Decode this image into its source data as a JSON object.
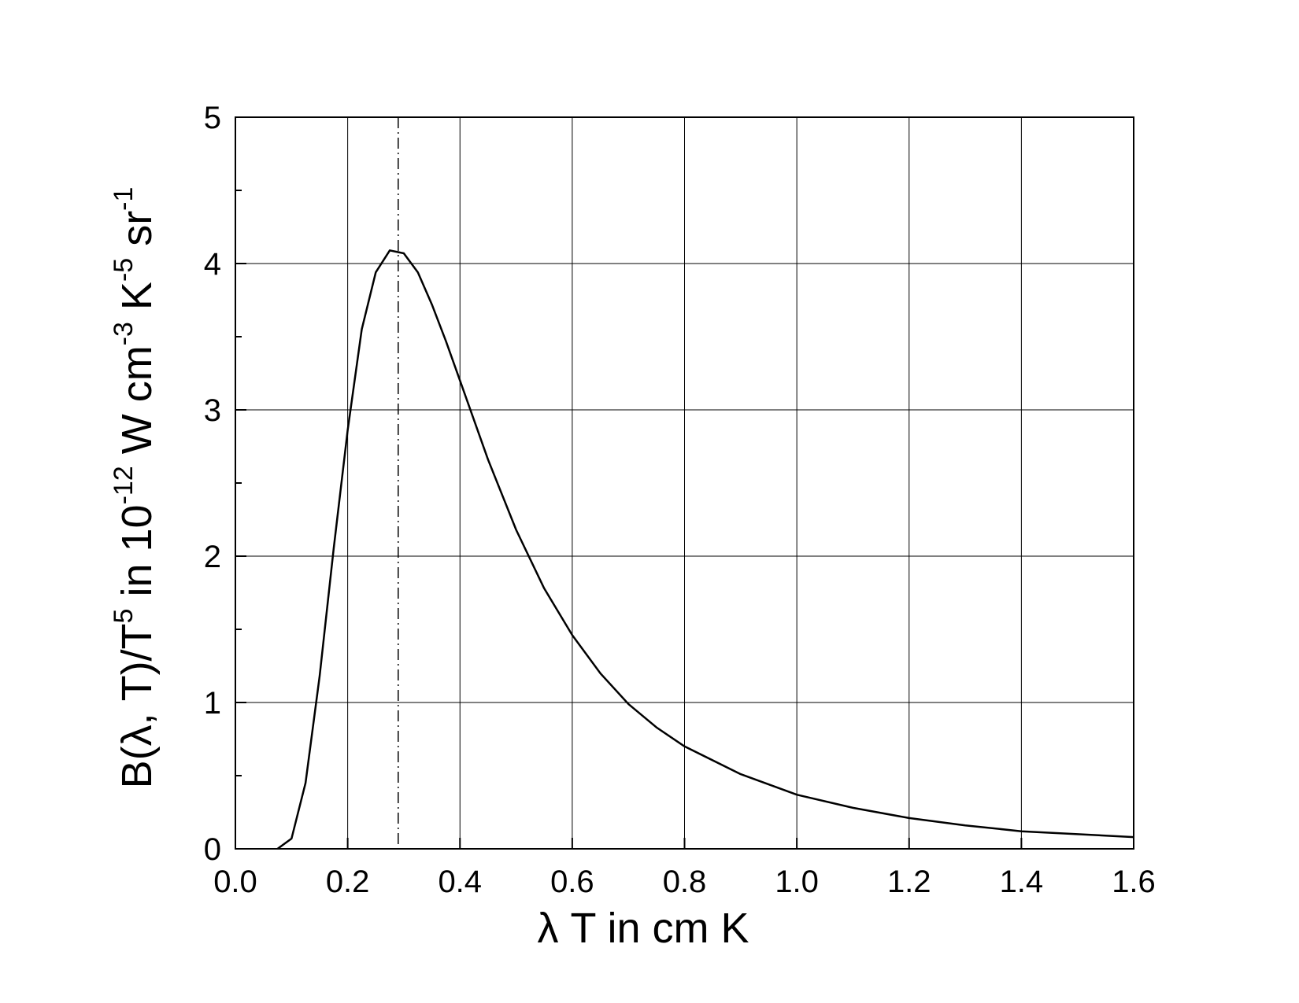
{
  "chart_data": {
    "type": "line",
    "title": "",
    "xlabel": "λ T in cm K",
    "ylabel": {
      "base": "B(λ, T)/T",
      "base_sup": "5",
      "mid1": " in 10",
      "mid1_sup": "-12",
      "mid2": " W cm",
      "mid2_sup": "-3",
      "mid3": " K",
      "mid3_sup": "-5",
      "mid4": " sr",
      "mid4_sup": "-1"
    },
    "xlim": [
      0.0,
      1.6
    ],
    "ylim": [
      0,
      5
    ],
    "x_ticks": [
      "0.0",
      "0.2",
      "0.4",
      "0.6",
      "0.8",
      "1.0",
      "1.2",
      "1.4",
      "1.6"
    ],
    "x_tick_values": [
      0.0,
      0.2,
      0.4,
      0.6,
      0.8,
      1.0,
      1.2,
      1.4,
      1.6
    ],
    "y_ticks": [
      "0",
      "1",
      "2",
      "3",
      "4",
      "5"
    ],
    "y_tick_values": [
      0,
      1,
      2,
      3,
      4,
      5
    ],
    "y_minor_tick_values": [
      0.5,
      1.5,
      2.5,
      3.5,
      4.5
    ],
    "grid": true,
    "reference_line": {
      "x": 0.29,
      "style": "dash-dot"
    },
    "series": [
      {
        "x": [
          0.075,
          0.1,
          0.125,
          0.15,
          0.175,
          0.2,
          0.225,
          0.25,
          0.275,
          0.3,
          0.325,
          0.35,
          0.375,
          0.4,
          0.45,
          0.5,
          0.55,
          0.6,
          0.65,
          0.7,
          0.75,
          0.8,
          0.9,
          1.0,
          1.1,
          1.2,
          1.3,
          1.4,
          1.5,
          1.6
        ],
        "y": [
          0.0,
          0.07,
          0.45,
          1.18,
          2.05,
          2.86,
          3.55,
          3.94,
          4.09,
          4.07,
          3.94,
          3.72,
          3.47,
          3.2,
          2.66,
          2.18,
          1.78,
          1.46,
          1.2,
          0.99,
          0.83,
          0.7,
          0.51,
          0.37,
          0.28,
          0.21,
          0.16,
          0.12,
          0.1,
          0.08
        ]
      }
    ]
  }
}
